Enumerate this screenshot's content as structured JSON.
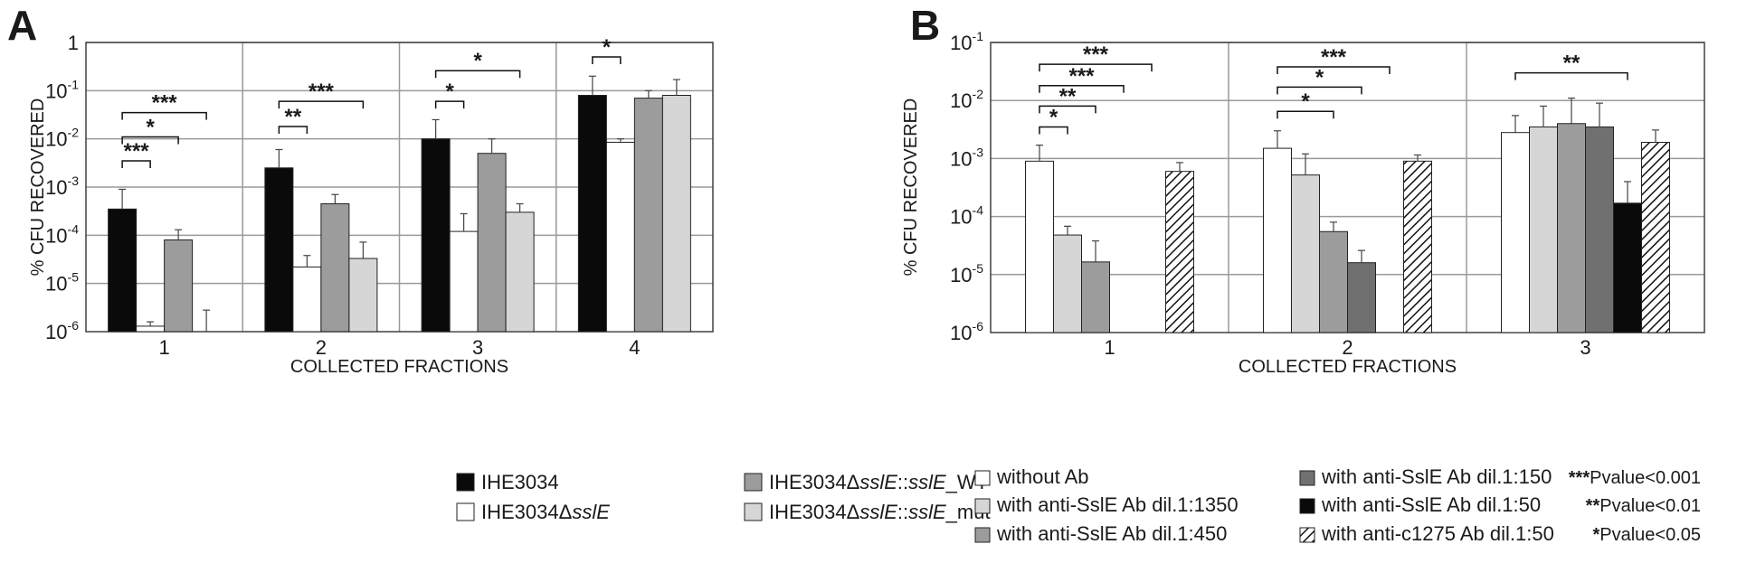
{
  "colors": {
    "black": "#0a0a0a",
    "white": "#ffffff",
    "light_gray": "#d6d6d6",
    "mid_gray": "#9c9c9c",
    "dark_gray": "#707070",
    "grid": "#9a9a9a",
    "border": "#404040"
  },
  "chart_data": [
    {
      "panel": "A",
      "type": "bar",
      "scale": "log",
      "title": "",
      "xlabel": "COLLECTED FRACTIONS",
      "ylabel": "% CFU RECOVERED",
      "ylim": [
        1e-06,
        1
      ],
      "yticks": [
        {
          "base": "10",
          "exp": "-6",
          "value": 1e-06
        },
        {
          "base": "10",
          "exp": "-5",
          "value": 1e-05
        },
        {
          "base": "10",
          "exp": "-4",
          "value": 0.0001
        },
        {
          "base": "10",
          "exp": "-3",
          "value": 0.001
        },
        {
          "base": "10",
          "exp": "-2",
          "value": 0.01
        },
        {
          "base": "10",
          "exp": "-1",
          "value": 0.1
        },
        {
          "base": "1",
          "exp": "",
          "value": 1
        }
      ],
      "categories": [
        "1",
        "2",
        "3",
        "4"
      ],
      "grid": true,
      "legend_position": "bottom",
      "series": [
        {
          "name": "IHE3034",
          "fill": "black",
          "values": [
            0.00035,
            0.0025,
            0.01,
            0.08
          ],
          "err": [
            0.0009,
            0.006,
            0.025,
            0.2
          ]
        },
        {
          "name": "IHE3034ΔsslE",
          "fill": "white",
          "values": [
            1.3e-06,
            2.2e-05,
            0.00012,
            0.0085
          ],
          "err": [
            1.6e-06,
            3.8e-05,
            0.00028,
            0.01
          ]
        },
        {
          "name": "IHE3034ΔsslE::sslE_WT",
          "fill": "mid_gray",
          "values": [
            8e-05,
            0.00045,
            0.005,
            0.07
          ],
          "err": [
            0.00013,
            0.0007,
            0.01,
            0.1
          ]
        },
        {
          "name": "IHE3034ΔsslE::sslE_mut",
          "fill": "light_gray",
          "values": [
            null,
            3.3e-05,
            0.0003,
            0.08
          ],
          "err": [
            2.8e-06,
            7.2e-05,
            0.00045,
            0.17
          ]
        }
      ],
      "legend": [
        {
          "parts": [
            "IHE3034"
          ],
          "fill": "black"
        },
        {
          "parts": [
            "IHE3034Δ",
            "sslE",
            ""
          ],
          "fill": "white"
        },
        {
          "parts": [
            "IHE3034Δ",
            "sslE",
            "::",
            "sslE",
            "_WT"
          ],
          "fill": "mid_gray"
        },
        {
          "parts": [
            "IHE3034Δ",
            "sslE",
            "::",
            "sslE",
            "_mut"
          ],
          "fill": "light_gray"
        }
      ],
      "significance": [
        {
          "category": 0,
          "from": 0,
          "to": 1,
          "y": 0.0035,
          "label": "***"
        },
        {
          "category": 0,
          "from": 0,
          "to": 2,
          "y": 0.011,
          "label": "*"
        },
        {
          "category": 0,
          "from": 0,
          "to": 3,
          "y": 0.035,
          "label": "***"
        },
        {
          "category": 1,
          "from": 0,
          "to": 1,
          "y": 0.018,
          "label": "**"
        },
        {
          "category": 1,
          "from": 0,
          "to": 3,
          "y": 0.06,
          "label": "***"
        },
        {
          "category": 2,
          "from": 0,
          "to": 1,
          "y": 0.06,
          "label": "*"
        },
        {
          "category": 2,
          "from": 0,
          "to": 3,
          "y": 0.26,
          "label": "*"
        },
        {
          "category": 3,
          "from": 0,
          "to": 1,
          "y": 0.5,
          "label": "*"
        }
      ]
    },
    {
      "panel": "B",
      "type": "bar",
      "scale": "log",
      "title": "",
      "xlabel": "COLLECTED FRACTIONS",
      "ylabel": "% CFU RECOVERED",
      "ylim": [
        1e-06,
        0.1
      ],
      "yticks": [
        {
          "base": "10",
          "exp": "-6",
          "value": 1e-06
        },
        {
          "base": "10",
          "exp": "-5",
          "value": 1e-05
        },
        {
          "base": "10",
          "exp": "-4",
          "value": 0.0001
        },
        {
          "base": "10",
          "exp": "-3",
          "value": 0.001
        },
        {
          "base": "10",
          "exp": "-2",
          "value": 0.01
        },
        {
          "base": "10",
          "exp": "-1",
          "value": 0.1
        }
      ],
      "categories": [
        "1",
        "2",
        "3"
      ],
      "grid": true,
      "legend_position": "bottom",
      "series": [
        {
          "name": "without Ab",
          "fill": "white",
          "values": [
            0.0009,
            0.0015,
            0.0028
          ],
          "err": [
            0.0017,
            0.003,
            0.0055
          ]
        },
        {
          "name": "with anti-SslE Ab dil.1:1350",
          "fill": "light_gray",
          "values": [
            4.8e-05,
            0.00052,
            0.0035
          ],
          "err": [
            6.8e-05,
            0.0012,
            0.008
          ]
        },
        {
          "name": "with anti-SslE Ab dil.1:450",
          "fill": "mid_gray",
          "values": [
            1.65e-05,
            5.5e-05,
            0.004
          ],
          "err": [
            3.8e-05,
            8e-05,
            0.011
          ]
        },
        {
          "name": "with anti-SslE Ab dil.1:150",
          "fill": "dark_gray",
          "values": [
            null,
            1.6e-05,
            0.0035
          ],
          "err": [
            null,
            2.6e-05,
            0.009
          ]
        },
        {
          "name": "with anti-SslE Ab dil.1:50",
          "fill": "black",
          "values": [
            null,
            null,
            0.00017
          ],
          "err": [
            null,
            null,
            0.0004
          ]
        },
        {
          "name": "with anti-c1275 Ab dil.1:50",
          "fill": "hatch",
          "values": [
            0.0006,
            0.0009,
            0.0019
          ],
          "err": [
            0.00085,
            0.00115,
            0.0031
          ]
        }
      ],
      "legend": [
        {
          "parts": [
            "without Ab"
          ],
          "fill": "white"
        },
        {
          "parts": [
            "with anti-SslE Ab dil.1:1350"
          ],
          "fill": "light_gray"
        },
        {
          "parts": [
            "with anti-SslE Ab dil.1:450"
          ],
          "fill": "mid_gray"
        },
        {
          "parts": [
            "with anti-SslE Ab dil.1:150"
          ],
          "fill": "dark_gray"
        },
        {
          "parts": [
            "with anti-SslE Ab dil.1:50"
          ],
          "fill": "black"
        },
        {
          "parts": [
            "with anti-c1275 Ab dil.1:50"
          ],
          "fill": "hatch"
        }
      ],
      "pvalues": [
        {
          "stars": "***",
          "text": "Pvalue<0.001"
        },
        {
          "stars": "**",
          "text": "Pvalue<0.01"
        },
        {
          "stars": "*",
          "text": "Pvalue<0.05"
        }
      ],
      "significance": [
        {
          "category": 0,
          "from": 0,
          "to": 1,
          "y": 0.0035,
          "label": "*"
        },
        {
          "category": 0,
          "from": 0,
          "to": 2,
          "y": 0.008,
          "label": "**"
        },
        {
          "category": 0,
          "from": 0,
          "to": 3,
          "y": 0.018,
          "label": "***"
        },
        {
          "category": 0,
          "from": 0,
          "to": 4,
          "y": 0.042,
          "label": "***"
        },
        {
          "category": 1,
          "from": 0,
          "to": 2,
          "y": 0.0065,
          "label": "*"
        },
        {
          "category": 1,
          "from": 0,
          "to": 3,
          "y": 0.017,
          "label": "*"
        },
        {
          "category": 1,
          "from": 0,
          "to": 4,
          "y": 0.038,
          "label": "***"
        },
        {
          "category": 2,
          "from": 0,
          "to": 4,
          "y": 0.03,
          "label": "**"
        }
      ]
    }
  ]
}
